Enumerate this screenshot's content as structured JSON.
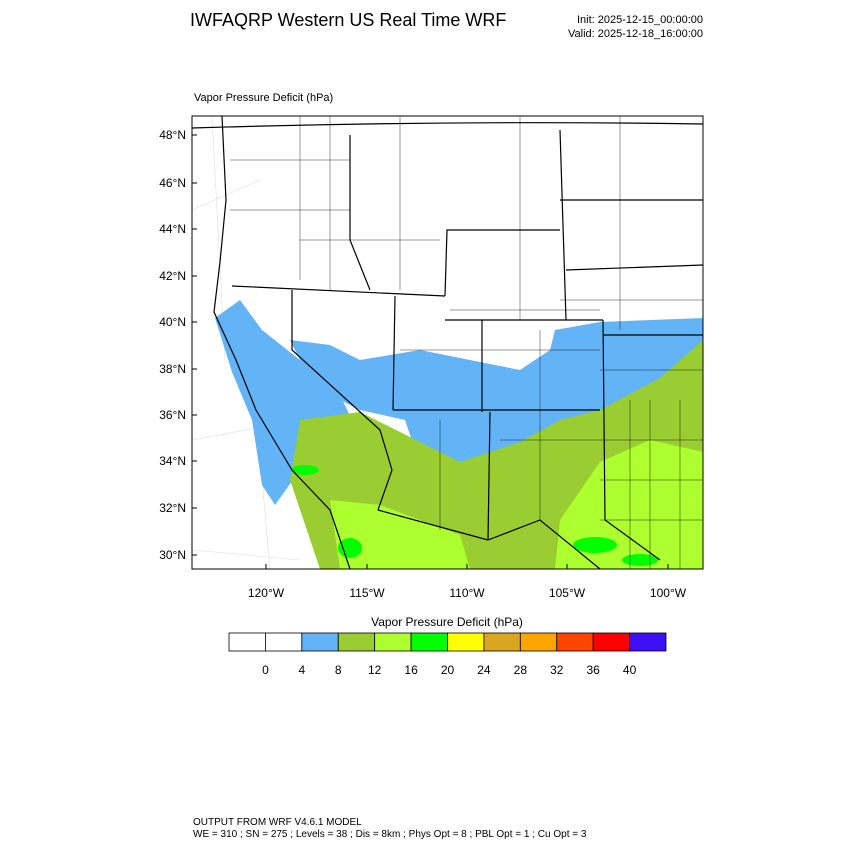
{
  "header": {
    "title": "IWFAQRP Western US Real Time WRF",
    "init": "Init: 2025-12-15_00:00:00",
    "valid": "Valid: 2025-12-18_16:00:00"
  },
  "map": {
    "field_label": "Vapor Pressure Deficit   (hPa)",
    "lat_labels": [
      "48°N",
      "46°N",
      "44°N",
      "42°N",
      "40°N",
      "38°N",
      "36°N",
      "34°N",
      "32°N",
      "30°N"
    ],
    "lon_labels": [
      "120°W",
      "115°W",
      "110°W",
      "105°W",
      "100°W"
    ]
  },
  "colorbar": {
    "title": "Vapor Pressure Deficit  (hPa)",
    "colors": [
      "#ffffff",
      "#ffffff",
      "#63b3f7",
      "#9acd32",
      "#adff2f",
      "#00ff00",
      "#ffff00",
      "#daa520",
      "#ffa500",
      "#ff4500",
      "#ff0000",
      "#3d10f5"
    ],
    "levels": [
      0,
      4,
      8,
      12,
      16,
      20,
      24,
      28,
      32,
      36,
      40
    ]
  },
  "footer": {
    "line1": "OUTPUT FROM WRF V4.6.1 MODEL",
    "line2": "WE = 310 ; SN = 275 ; Levels = 38 ; Dis = 8km ; Phys Opt = 8 ; PBL Opt = 1 ; Cu Opt = 3"
  }
}
